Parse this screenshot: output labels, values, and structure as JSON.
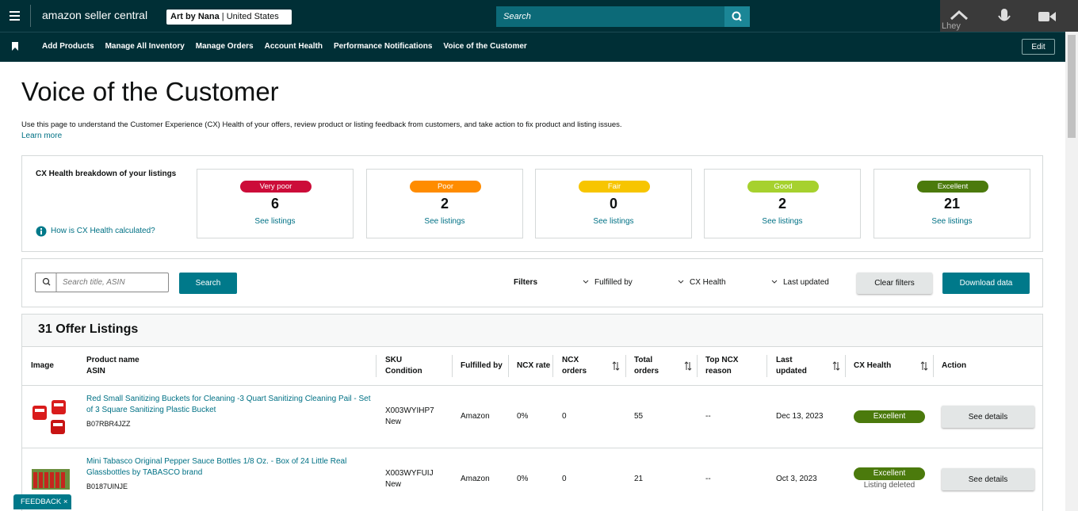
{
  "header": {
    "brand": "amazon seller central",
    "store": "Art by Nana",
    "marketplace": "United States",
    "search_placeholder": "Search",
    "call_user": "Lhey"
  },
  "nav": {
    "items": [
      "Add Products",
      "Manage All Inventory",
      "Manage Orders",
      "Account Health",
      "Performance Notifications",
      "Voice of the Customer"
    ],
    "edit": "Edit"
  },
  "page": {
    "title": "Voice of the Customer",
    "description": "Use this page to understand the Customer Experience (CX) Health of your offers, review product or listing feedback from customers, and take action to fix product and listing issues.",
    "learn_more": "Learn more"
  },
  "cx_health": {
    "heading": "CX Health breakdown of your listings",
    "help": "How is CX Health calculated?",
    "cards": [
      {
        "label": "Very poor",
        "count": "6",
        "link": "See listings"
      },
      {
        "label": "Poor",
        "count": "2",
        "link": "See listings"
      },
      {
        "label": "Fair",
        "count": "0",
        "link": "See listings"
      },
      {
        "label": "Good",
        "count": "2",
        "link": "See listings"
      },
      {
        "label": "Excellent",
        "count": "21",
        "link": "See listings"
      }
    ]
  },
  "filters": {
    "search_placeholder": "Search title, ASIN",
    "search_button": "Search",
    "label": "Filters",
    "dropdowns": [
      "Fulfilled by",
      "CX Health",
      "Last updated"
    ],
    "clear": "Clear filters",
    "download": "Download data"
  },
  "table": {
    "title": "31 Offer Listings",
    "headers": [
      [
        "Image"
      ],
      [
        "Product name",
        "ASIN"
      ],
      [
        "SKU",
        "Condition"
      ],
      [
        "Fulfilled by"
      ],
      [
        "NCX rate"
      ],
      [
        "NCX",
        "orders"
      ],
      [
        "Total",
        "orders"
      ],
      [
        "Top NCX",
        "reason"
      ],
      [
        "Last",
        "updated"
      ],
      [
        "CX Health"
      ],
      [
        "Action"
      ]
    ],
    "rows": [
      {
        "product_name": "Red Small Sanitizing Buckets for Cleaning -3 Quart Sanitizing Cleaning Pail - Set of 3 Square Sanitizing Plastic Bucket",
        "asin": "B07RBR4JZZ",
        "sku": "X003WYIHP7",
        "condition": "New",
        "fulfilled_by": "Amazon",
        "ncx_rate": "0%",
        "ncx_orders": "0",
        "total_orders": "55",
        "top_ncx_reason": "--",
        "last_updated": "Dec 13, 2023",
        "cx_health": "Excellent",
        "action": "See details"
      },
      {
        "product_name": "Mini Tabasco Original Pepper Sauce Bottles 1/8 Oz. - Box of 24 Little Real Glassbottles by TABASCO brand",
        "asin": "B0187UINJE",
        "sku": "X003WYFUIJ",
        "condition": "New",
        "fulfilled_by": "Amazon",
        "ncx_rate": "0%",
        "ncx_orders": "0",
        "total_orders": "21",
        "top_ncx_reason": "--",
        "last_updated": "Oct 3, 2023",
        "cx_health": "Excellent",
        "cx_note": "Listing deleted",
        "action": "See details"
      }
    ]
  },
  "feedback": "FEEDBACK"
}
